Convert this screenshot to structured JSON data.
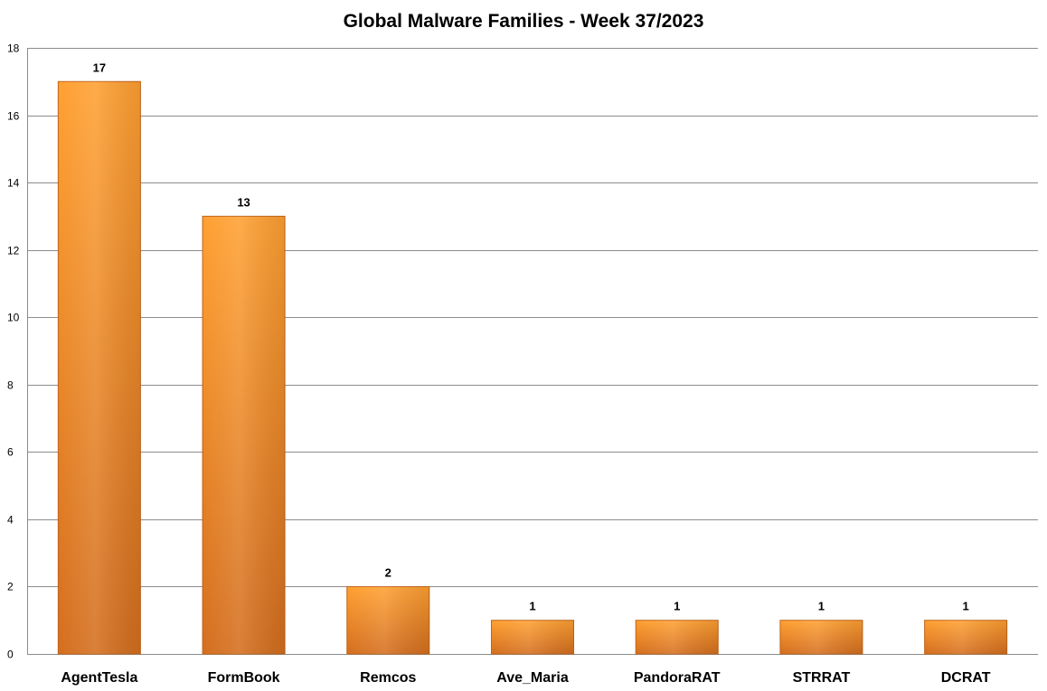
{
  "chart_data": {
    "type": "bar",
    "title": "Global Malware Families - Week 37/2023",
    "xlabel": "",
    "ylabel": "",
    "categories": [
      "AgentTesla",
      "FormBook",
      "Remcos",
      "Ave_Maria",
      "PandoraRAT",
      "STRRAT",
      "DCRAT"
    ],
    "values": [
      17,
      13,
      2,
      1,
      1,
      1,
      1
    ],
    "ylim": [
      0,
      18
    ],
    "yticks": [
      0,
      2,
      4,
      6,
      8,
      10,
      12,
      14,
      16,
      18
    ],
    "grid": true,
    "legend": "none",
    "colors": {
      "bar_light": "#ffa032",
      "bar_dark": "#d46e1e",
      "bar_edge": "#c0641a",
      "gridline": "#8c8c8c"
    }
  }
}
